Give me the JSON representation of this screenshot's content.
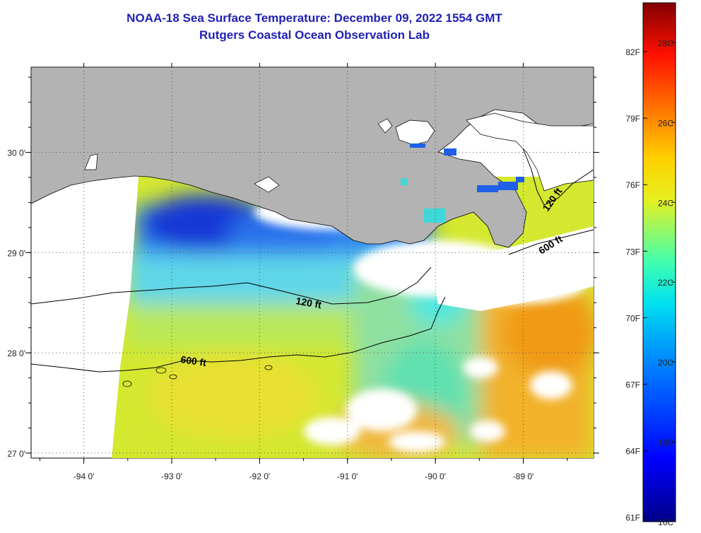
{
  "header": {
    "title": "NOAA-18 Sea Surface Temperature:  December 09, 2022 1554 GMT",
    "subtitle": "Rutgers Coastal Ocean Observation Lab"
  },
  "map": {
    "lon_range": [
      -94.6,
      -88.2
    ],
    "lat_range": [
      26.95,
      30.85
    ],
    "lon_ticks": [
      {
        "value": -94,
        "label": "-94 0'"
      },
      {
        "value": -93,
        "label": "-93 0'"
      },
      {
        "value": -92,
        "label": "-92 0'"
      },
      {
        "value": -91,
        "label": "-91 0'"
      },
      {
        "value": -90,
        "label": "-90 0'"
      },
      {
        "value": -89,
        "label": "-89 0'"
      }
    ],
    "lat_ticks": [
      {
        "value": 30,
        "label": "30 0'"
      },
      {
        "value": 29,
        "label": "29 0'"
      },
      {
        "value": 28,
        "label": "28 0'"
      },
      {
        "value": 27,
        "label": "27 0'"
      }
    ],
    "contour_labels": [
      {
        "text": "120 ft"
      },
      {
        "text": "600 ft"
      },
      {
        "text": "120 ft"
      },
      {
        "text": "600 ft"
      }
    ],
    "colors": {
      "land": "#b3b3b3",
      "cloud": "#ffffff",
      "grid": "#555555"
    }
  },
  "colorbar": {
    "range_c": [
      16,
      29
    ],
    "fahrenheit_labels": [
      "82F",
      "79F",
      "76F",
      "73F",
      "70F",
      "67F",
      "64F",
      "61F"
    ],
    "celsius_labels": [
      "28C",
      "26C",
      "24C",
      "22C",
      "20C",
      "18C",
      "16C"
    ]
  }
}
